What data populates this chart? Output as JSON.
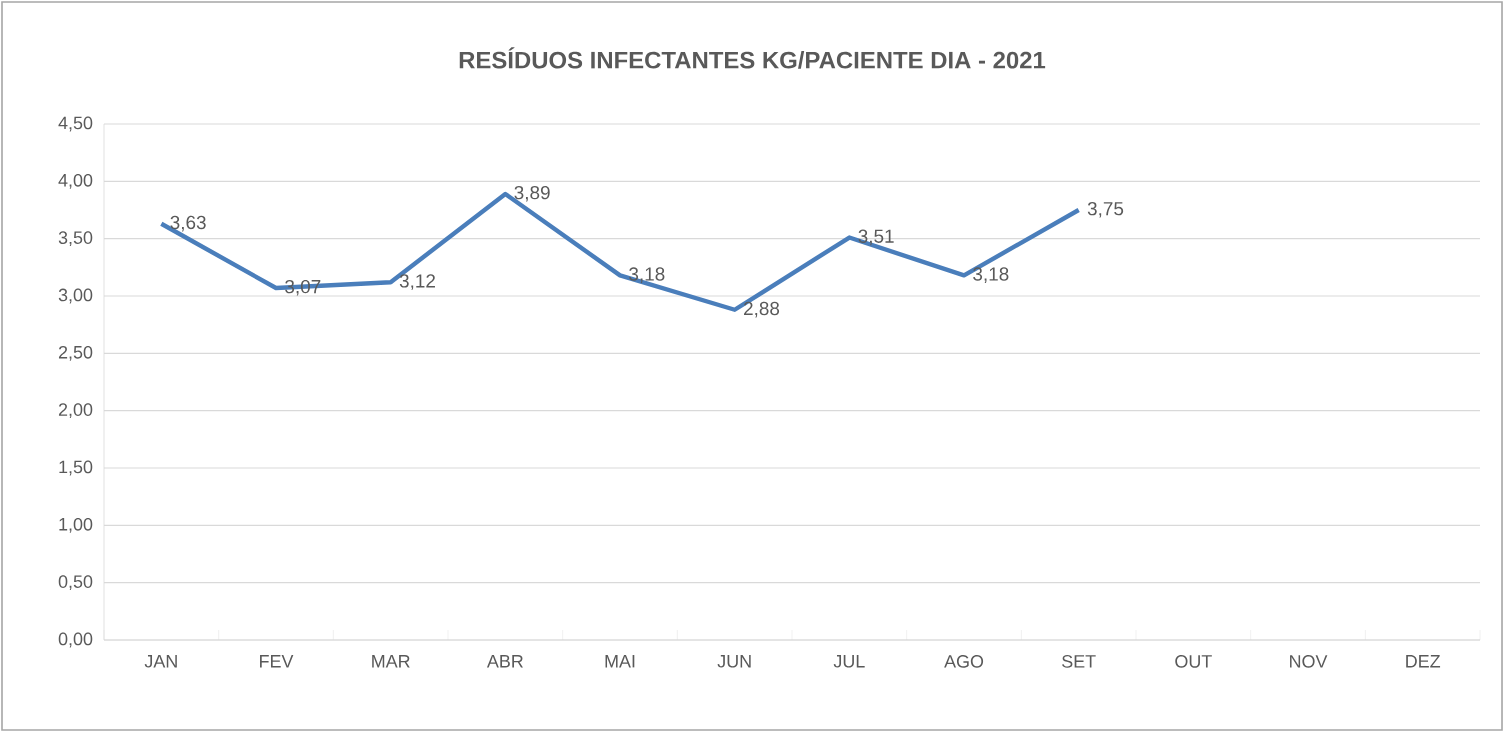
{
  "chart_data": {
    "type": "line",
    "title": "RESÍDUOS INFECTANTES KG/PACIENTE DIA - 2021",
    "categories": [
      "JAN",
      "FEV",
      "MAR",
      "ABR",
      "MAI",
      "JUN",
      "JUL",
      "AGO",
      "SET",
      "OUT",
      "NOV",
      "DEZ"
    ],
    "series": [
      {
        "color": "#4a7ebb",
        "values": [
          3.63,
          3.07,
          3.12,
          3.89,
          3.18,
          2.88,
          3.51,
          3.18,
          3.75,
          null,
          null,
          null
        ],
        "value_labels": [
          "3,63",
          "3,07",
          "3,12",
          "3,89",
          "3,18",
          "2,88",
          "3,51",
          "3,18",
          "3,75",
          null,
          null,
          null
        ]
      }
    ],
    "ylim": [
      0,
      4.5
    ],
    "yticks": [
      {
        "value": 0,
        "label": "0,00"
      },
      {
        "value": 0.5,
        "label": "0,50"
      },
      {
        "value": 1,
        "label": "1,00"
      },
      {
        "value": 1.5,
        "label": "1,50"
      },
      {
        "value": 2,
        "label": "2,00"
      },
      {
        "value": 2.5,
        "label": "2,50"
      },
      {
        "value": 3,
        "label": "3,00"
      },
      {
        "value": 3.5,
        "label": "3,50"
      },
      {
        "value": 4,
        "label": "4,00"
      },
      {
        "value": 4.5,
        "label": "4,50"
      }
    ],
    "grid": "y"
  }
}
